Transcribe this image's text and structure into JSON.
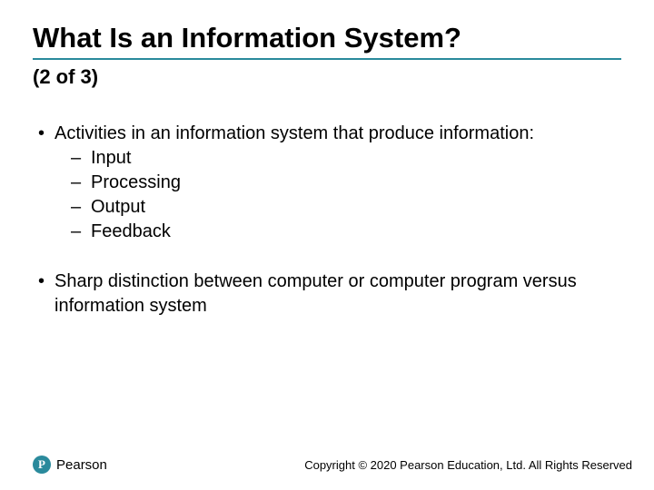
{
  "colors": {
    "accent": "#2a8a9c",
    "text": "#000000",
    "background": "#ffffff"
  },
  "title": "What Is an Information System?",
  "subtitle": "(2 of 3)",
  "bullets": [
    {
      "text": "Activities in an information system that produce information:",
      "sub": [
        "Input",
        "Processing",
        "Output",
        "Feedback"
      ]
    },
    {
      "text": "Sharp distinction between computer or computer program versus information system",
      "sub": []
    }
  ],
  "footer": {
    "logo_letter": "P",
    "logo_text": "Pearson",
    "copyright": "Copyright © 2020 Pearson Education, Ltd. All Rights Reserved"
  }
}
